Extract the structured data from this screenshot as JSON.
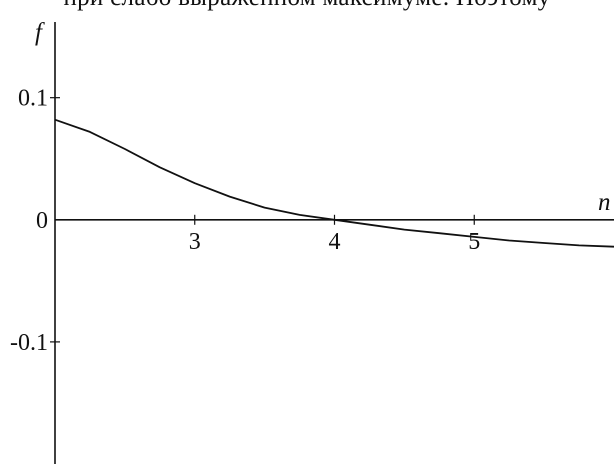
{
  "page_text": "при слабо выраженном максимуме. Поэтому",
  "chart_data": {
    "type": "line",
    "title": "",
    "xlabel": "n",
    "ylabel": "f",
    "xlim": [
      2,
      6
    ],
    "ylim": [
      -0.2,
      0.18
    ],
    "x_ticks": [
      3,
      4,
      5
    ],
    "x_tick_labels": [
      "3",
      "4",
      "5"
    ],
    "y_ticks": [
      0.1,
      0,
      -0.1
    ],
    "y_tick_labels": [
      "0.1",
      "0",
      "-0.1"
    ],
    "grid": false,
    "series": [
      {
        "color": "#111111",
        "x": [
          2.0,
          2.25,
          2.5,
          2.75,
          3.0,
          3.25,
          3.5,
          3.75,
          4.0,
          4.25,
          4.5,
          4.75,
          5.0,
          5.25,
          5.5,
          5.75,
          6.0
        ],
        "y": [
          0.082,
          0.072,
          0.058,
          0.043,
          0.03,
          0.019,
          0.01,
          0.004,
          0.0,
          -0.004,
          -0.008,
          -0.011,
          -0.014,
          -0.017,
          -0.019,
          -0.021,
          -0.022
        ]
      }
    ]
  }
}
